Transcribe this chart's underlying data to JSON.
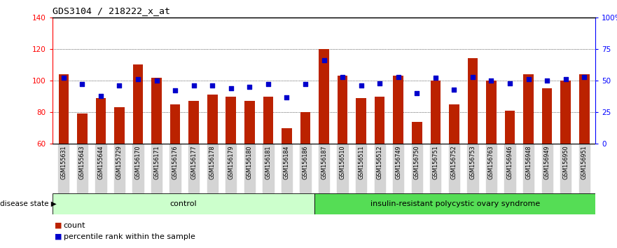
{
  "title": "GDS3104 / 218222_x_at",
  "categories": [
    "GSM155631",
    "GSM155643",
    "GSM155644",
    "GSM155729",
    "GSM156170",
    "GSM156171",
    "GSM156176",
    "GSM156177",
    "GSM156178",
    "GSM156179",
    "GSM156180",
    "GSM156181",
    "GSM156184",
    "GSM156186",
    "GSM156187",
    "GSM156510",
    "GSM156511",
    "GSM156512",
    "GSM156749",
    "GSM156750",
    "GSM156751",
    "GSM156752",
    "GSM156753",
    "GSM156763",
    "GSM156946",
    "GSM156948",
    "GSM156949",
    "GSM156950",
    "GSM156951"
  ],
  "bar_values": [
    104,
    79,
    89,
    83,
    110,
    102,
    85,
    87,
    91,
    90,
    87,
    90,
    70,
    80,
    120,
    103,
    89,
    90,
    103,
    74,
    100,
    85,
    114,
    100,
    81,
    104,
    95,
    100,
    104
  ],
  "percentile_values": [
    52,
    47,
    38,
    46,
    51,
    50,
    42,
    46,
    46,
    44,
    45,
    47,
    37,
    47,
    66,
    53,
    46,
    48,
    53,
    40,
    52,
    43,
    53,
    50,
    48,
    51,
    50,
    51,
    53
  ],
  "control_count": 14,
  "disease_count": 15,
  "ylim_left": [
    60,
    140
  ],
  "ylim_right": [
    0,
    100
  ],
  "bar_color": "#bb2200",
  "dot_color": "#0000cc",
  "control_label": "control",
  "disease_label": "insulin-resistant polycystic ovary syndrome",
  "control_bg": "#ccffcc",
  "disease_bg": "#55dd55",
  "legend_count": "count",
  "legend_percentile": "percentile rank within the sample",
  "yticks_left": [
    60,
    80,
    100,
    120,
    140
  ],
  "yticks_right": [
    0,
    25,
    50,
    75,
    100
  ],
  "ytick_right_labels": [
    "0",
    "25",
    "50",
    "75",
    "100%"
  ]
}
